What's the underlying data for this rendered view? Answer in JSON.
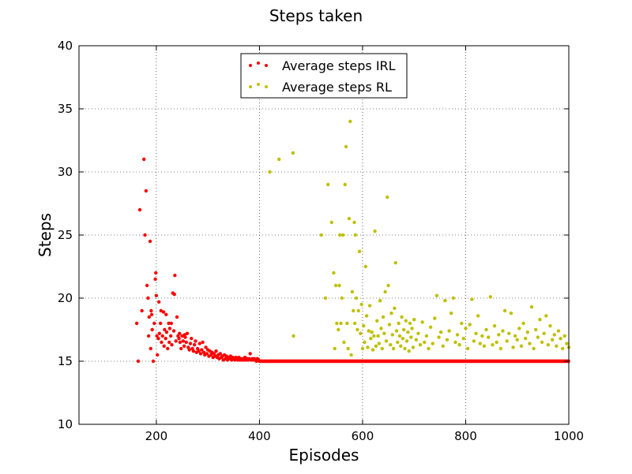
{
  "chart_data": {
    "type": "scatter",
    "title": "Steps taken",
    "xlabel": "Episodes",
    "ylabel": "Steps",
    "xlim": [
      50,
      1000
    ],
    "ylim": [
      10,
      40
    ],
    "xticks": [
      200,
      400,
      600,
      800,
      1000
    ],
    "yticks": [
      10,
      15,
      20,
      25,
      30,
      35,
      40
    ],
    "grid": true,
    "legend_position": "top-center",
    "series": [
      {
        "name": "Average steps IRL",
        "color": "#ff0000",
        "points": [
          [
            162,
            18.0
          ],
          [
            165,
            15.0
          ],
          [
            168,
            27.0
          ],
          [
            172,
            19.0
          ],
          [
            176,
            31.0
          ],
          [
            178,
            25.0
          ],
          [
            180,
            28.5
          ],
          [
            182,
            21.0
          ],
          [
            184,
            20.0
          ],
          [
            185,
            17.0
          ],
          [
            186,
            18.5
          ],
          [
            188,
            24.5
          ],
          [
            189,
            16.0
          ],
          [
            190,
            19.0
          ],
          [
            191,
            18.7
          ],
          [
            192,
            17.5
          ],
          [
            194,
            15.0
          ],
          [
            196,
            18.0
          ],
          [
            198,
            21.5
          ],
          [
            199,
            22.0
          ],
          [
            200,
            20.2
          ],
          [
            201,
            17.0
          ],
          [
            202,
            15.5
          ],
          [
            204,
            16.8
          ],
          [
            205,
            19.7
          ],
          [
            206,
            17.2
          ],
          [
            208,
            18.0
          ],
          [
            209,
            19.0
          ],
          [
            210,
            16.5
          ],
          [
            212,
            17.0
          ],
          [
            214,
            18.9
          ],
          [
            215,
            16.2
          ],
          [
            216,
            17.5
          ],
          [
            218,
            16.8
          ],
          [
            219,
            18.7
          ],
          [
            220,
            17.3
          ],
          [
            222,
            16.0
          ],
          [
            224,
            18.0
          ],
          [
            225,
            16.5
          ],
          [
            226,
            17.6
          ],
          [
            228,
            17.0
          ],
          [
            229,
            18.0
          ],
          [
            230,
            16.3
          ],
          [
            232,
            20.4
          ],
          [
            234,
            17.4
          ],
          [
            235,
            20.3
          ],
          [
            236,
            21.8
          ],
          [
            238,
            16.6
          ],
          [
            240,
            18.5
          ],
          [
            242,
            17.0
          ],
          [
            244,
            16.8
          ],
          [
            245,
            17.2
          ],
          [
            246,
            16.5
          ],
          [
            248,
            16.0
          ],
          [
            250,
            17.0
          ],
          [
            252,
            16.6
          ],
          [
            254,
            16.2
          ],
          [
            255,
            17.1
          ],
          [
            256,
            16.9
          ],
          [
            258,
            16.5
          ],
          [
            260,
            17.2
          ],
          [
            262,
            16.1
          ],
          [
            264,
            15.9
          ],
          [
            266,
            16.4
          ],
          [
            268,
            16.8
          ],
          [
            270,
            16.0
          ],
          [
            272,
            15.8
          ],
          [
            274,
            16.3
          ],
          [
            276,
            16.6
          ],
          [
            278,
            15.7
          ],
          [
            280,
            16.0
          ],
          [
            282,
            15.8
          ],
          [
            284,
            16.4
          ],
          [
            286,
            15.6
          ],
          [
            288,
            15.9
          ],
          [
            290,
            16.5
          ],
          [
            292,
            15.7
          ],
          [
            294,
            15.5
          ],
          [
            296,
            16.1
          ],
          [
            298,
            15.6
          ],
          [
            300,
            15.9
          ],
          [
            302,
            15.4
          ],
          [
            304,
            15.8
          ],
          [
            306,
            15.5
          ],
          [
            308,
            15.7
          ],
          [
            310,
            15.3
          ],
          [
            312,
            15.6
          ],
          [
            314,
            15.4
          ],
          [
            316,
            15.8
          ],
          [
            318,
            15.3
          ],
          [
            320,
            15.5
          ],
          [
            322,
            15.2
          ],
          [
            324,
            15.6
          ],
          [
            326,
            15.3
          ],
          [
            328,
            15.4
          ],
          [
            330,
            15.1
          ],
          [
            332,
            15.5
          ],
          [
            334,
            15.2
          ],
          [
            336,
            15.4
          ],
          [
            338,
            15.1
          ],
          [
            340,
            15.3
          ],
          [
            342,
            15.2
          ],
          [
            344,
            15.4
          ],
          [
            346,
            15.1
          ],
          [
            348,
            15.3
          ],
          [
            350,
            15.2
          ],
          [
            352,
            15.1
          ],
          [
            354,
            15.3
          ],
          [
            356,
            15.2
          ],
          [
            358,
            15.1
          ],
          [
            360,
            15.3
          ],
          [
            362,
            15.1
          ],
          [
            364,
            15.2
          ],
          [
            366,
            15.1
          ],
          [
            368,
            15.2
          ],
          [
            370,
            15.1
          ],
          [
            372,
            15.3
          ],
          [
            374,
            15.1
          ],
          [
            376,
            15.2
          ],
          [
            378,
            15.1
          ],
          [
            380,
            15.2
          ],
          [
            382,
            15.6
          ],
          [
            384,
            15.1
          ],
          [
            386,
            15.2
          ],
          [
            388,
            15.1
          ],
          [
            390,
            15.2
          ],
          [
            392,
            15.1
          ],
          [
            394,
            15.0
          ],
          [
            396,
            15.2
          ],
          [
            398,
            15.1
          ],
          [
            400,
            15.0
          ]
        ],
        "flat_after": 400,
        "flat_until": 1000,
        "flat_value": 15.0
      },
      {
        "name": "Average steps RL",
        "color": "#bfbf00",
        "points": [
          [
            420,
            30.0
          ],
          [
            438,
            31.0
          ],
          [
            465,
            31.5
          ],
          [
            466,
            17.0
          ],
          [
            520,
            25.0
          ],
          [
            528,
            20.0
          ],
          [
            533,
            29.0
          ],
          [
            540,
            26.0
          ],
          [
            544,
            22.0
          ],
          [
            546,
            16.0
          ],
          [
            548,
            21.0
          ],
          [
            550,
            18.0
          ],
          [
            553,
            17.5
          ],
          [
            555,
            21.0
          ],
          [
            556,
            25.0
          ],
          [
            558,
            18.0
          ],
          [
            560,
            20.0
          ],
          [
            562,
            25.0
          ],
          [
            564,
            16.5
          ],
          [
            566,
            29.0
          ],
          [
            568,
            32.0
          ],
          [
            570,
            18.0
          ],
          [
            572,
            16.0
          ],
          [
            574,
            26.3
          ],
          [
            576,
            34.0
          ],
          [
            578,
            15.5
          ],
          [
            580,
            20.5
          ],
          [
            582,
            19.0
          ],
          [
            584,
            26.0
          ],
          [
            585,
            18.0
          ],
          [
            586,
            25.0
          ],
          [
            588,
            20.0
          ],
          [
            590,
            17.5
          ],
          [
            592,
            19.0
          ],
          [
            594,
            23.7
          ],
          [
            596,
            17.2
          ],
          [
            598,
            19.5
          ],
          [
            600,
            16.0
          ],
          [
            602,
            17.8
          ],
          [
            604,
            16.5
          ],
          [
            606,
            22.5
          ],
          [
            608,
            18.6
          ],
          [
            610,
            16.1
          ],
          [
            612,
            17.4
          ],
          [
            614,
            19.4
          ],
          [
            616,
            16.8
          ],
          [
            618,
            17.3
          ],
          [
            620,
            15.9
          ],
          [
            622,
            17.0
          ],
          [
            624,
            25.3
          ],
          [
            626,
            16.2
          ],
          [
            628,
            18.2
          ],
          [
            630,
            17.0
          ],
          [
            632,
            16.4
          ],
          [
            634,
            19.8
          ],
          [
            636,
            17.6
          ],
          [
            638,
            16.0
          ],
          [
            640,
            18.5
          ],
          [
            642,
            17.2
          ],
          [
            644,
            20.5
          ],
          [
            646,
            16.6
          ],
          [
            648,
            28.0
          ],
          [
            650,
            21.0
          ],
          [
            652,
            17.9
          ],
          [
            654,
            16.3
          ],
          [
            656,
            18.8
          ],
          [
            658,
            17.1
          ],
          [
            660,
            16.0
          ],
          [
            662,
            19.2
          ],
          [
            664,
            22.8
          ],
          [
            666,
            17.4
          ],
          [
            668,
            16.5
          ],
          [
            670,
            18.0
          ],
          [
            672,
            17.0
          ],
          [
            674,
            16.2
          ],
          [
            676,
            18.5
          ],
          [
            678,
            16.8
          ],
          [
            680,
            17.5
          ],
          [
            682,
            16.0
          ],
          [
            684,
            18.2
          ],
          [
            686,
            16.6
          ],
          [
            688,
            17.3
          ],
          [
            690,
            15.8
          ],
          [
            692,
            18.0
          ],
          [
            694,
            16.9
          ],
          [
            696,
            17.6
          ],
          [
            698,
            16.1
          ],
          [
            700,
            18.3
          ],
          [
            704,
            16.7
          ],
          [
            708,
            17.2
          ],
          [
            712,
            16.3
          ],
          [
            716,
            18.1
          ],
          [
            720,
            16.5
          ],
          [
            724,
            17.0
          ],
          [
            728,
            16.0
          ],
          [
            732,
            17.7
          ],
          [
            736,
            16.4
          ],
          [
            740,
            18.4
          ],
          [
            744,
            20.2
          ],
          [
            748,
            16.9
          ],
          [
            752,
            17.3
          ],
          [
            756,
            16.2
          ],
          [
            760,
            19.8
          ],
          [
            764,
            16.7
          ],
          [
            768,
            17.4
          ],
          [
            772,
            18.8
          ],
          [
            776,
            20.0
          ],
          [
            780,
            16.5
          ],
          [
            784,
            17.1
          ],
          [
            788,
            16.3
          ],
          [
            792,
            18.0
          ],
          [
            796,
            16.8
          ],
          [
            800,
            17.6
          ],
          [
            804,
            16.0
          ],
          [
            808,
            17.9
          ],
          [
            812,
            19.9
          ],
          [
            816,
            16.6
          ],
          [
            820,
            17.2
          ],
          [
            824,
            18.6
          ],
          [
            828,
            16.4
          ],
          [
            832,
            17.0
          ],
          [
            836,
            16.2
          ],
          [
            840,
            17.5
          ],
          [
            844,
            16.9
          ],
          [
            848,
            20.1
          ],
          [
            852,
            16.3
          ],
          [
            856,
            17.8
          ],
          [
            860,
            16.5
          ],
          [
            864,
            17.1
          ],
          [
            868,
            16.0
          ],
          [
            872,
            17.4
          ],
          [
            876,
            19.0
          ],
          [
            880,
            16.6
          ],
          [
            884,
            17.2
          ],
          [
            888,
            18.8
          ],
          [
            892,
            16.1
          ],
          [
            896,
            17.0
          ],
          [
            900,
            16.7
          ],
          [
            904,
            17.6
          ],
          [
            908,
            16.2
          ],
          [
            912,
            18.0
          ],
          [
            916,
            16.8
          ],
          [
            920,
            17.3
          ],
          [
            924,
            16.4
          ],
          [
            928,
            19.3
          ],
          [
            932,
            16.0
          ],
          [
            936,
            17.5
          ],
          [
            940,
            16.9
          ],
          [
            944,
            18.3
          ],
          [
            948,
            16.5
          ],
          [
            952,
            17.2
          ],
          [
            956,
            18.6
          ],
          [
            960,
            16.3
          ],
          [
            964,
            17.8
          ],
          [
            968,
            16.7
          ],
          [
            972,
            17.1
          ],
          [
            976,
            16.2
          ],
          [
            980,
            17.4
          ],
          [
            984,
            16.8
          ],
          [
            988,
            16.0
          ],
          [
            992,
            17.0
          ],
          [
            996,
            16.4
          ],
          [
            1000,
            16.1
          ]
        ]
      }
    ]
  }
}
